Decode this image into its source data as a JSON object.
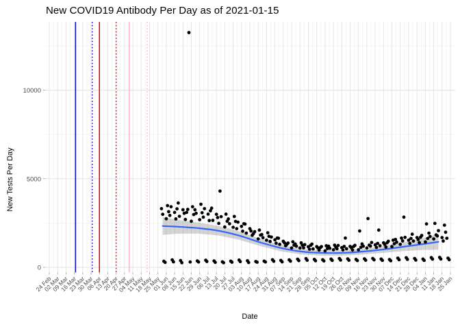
{
  "chart_data": {
    "type": "scatter",
    "title": "New COVID19 Antibody Per Day as of 2021-01-15",
    "xlabel": "Date",
    "ylabel": "New Tests Per Day",
    "x_tick_labels": [
      "24 Feb",
      "02 Mar",
      "09 Mar",
      "16 Mar",
      "23 Mar",
      "30 Mar",
      "06 Apr",
      "13 Apr",
      "20 Apr",
      "27 Apr",
      "04 May",
      "11 May",
      "18 May",
      "25 May",
      "01 Jun",
      "08 Jun",
      "15 Jun",
      "22 Jun",
      "29 Jun",
      "06 Jul",
      "13 Jul",
      "20 Jul",
      "27 Jul",
      "03 Aug",
      "10 Aug",
      "17 Aug",
      "24 Aug",
      "31 Aug",
      "07 Sep",
      "14 Sep",
      "21 Sep",
      "28 Sep",
      "05 Oct",
      "12 Oct",
      "19 Oct",
      "26 Oct",
      "02 Nov",
      "09 Nov",
      "16 Nov",
      "23 Nov",
      "30 Nov",
      "07 Dec",
      "14 Dec",
      "21 Dec",
      "28 Dec",
      "04 Jan",
      "11 Jan",
      "18 Jan",
      "25 Jan"
    ],
    "y_tick_labels": [
      "0",
      "5000",
      "10000"
    ],
    "y_ticks": [
      0,
      5000,
      10000
    ],
    "y_minor_ticks": [
      2500,
      7500,
      12500
    ],
    "ylim": [
      0,
      13850
    ],
    "first_tick_date": "2020-02-24",
    "points_start_date": "2020-05-28",
    "points_offset_days": 94,
    "point_color": "#000000",
    "smooth_color": "#3366FF",
    "ribbon_color": "rgba(125,125,125,0.33)",
    "grid_major_color": "#E3E3E3",
    "grid_minor_color": "#F0F0F0",
    "tick_label_color": "#4D4D4D",
    "daily_values": [
      3310,
      2990,
      340,
      280,
      2740,
      3480,
      3140,
      2930,
      3420,
      420,
      310,
      3100,
      2730,
      3300,
      3630,
      2880,
      380,
      260,
      3250,
      3050,
      2700,
      3100,
      3270,
      13250,
      300,
      2600,
      3420,
      2980,
      3250,
      3050,
      360,
      300,
      2690,
      3560,
      3080,
      2830,
      3310,
      400,
      330,
      3000,
      2640,
      3190,
      3340,
      2650,
      360,
      280,
      2990,
      2810,
      2480,
      4300,
      2860,
      310,
      260,
      2280,
      3000,
      2600,
      2730,
      2460,
      350,
      290,
      2260,
      2870,
      2590,
      2180,
      2550,
      410,
      320,
      2310,
      2040,
      2460,
      2440,
      1930,
      370,
      270,
      2180,
      2050,
      1810,
      1900,
      2010,
      330,
      290,
      1600,
      2100,
      1820,
      1850,
      1670,
      350,
      300,
      1530,
      1950,
      1750,
      1460,
      1710,
      430,
      340,
      1550,
      1360,
      1650,
      1640,
      1300,
      390,
      310,
      1470,
      1380,
      1220,
      1300,
      1370,
      420,
      350,
      1090,
      1440,
      1250,
      1320,
      1190,
      460,
      380,
      1090,
      1380,
      1250,
      1100,
      1280,
      490,
      400,
      1160,
      1020,
      1240,
      1310,
      1040,
      450,
      370,
      1170,
      1100,
      970,
      1110,
      1170,
      430,
      360,
      930,
      1220,
      1060,
      1190,
      1070,
      470,
      390,
      990,
      1250,
      1130,
      1050,
      1230,
      500,
      410,
      1110,
      980,
      1180,
      1650,
      1050,
      480,
      400,
      1180,
      1110,
      980,
      1180,
      1240,
      450,
      380,
      990,
      2050,
      1130,
      1320,
      1190,
      480,
      400,
      1090,
      2750,
      1250,
      1200,
      1400,
      500,
      420,
      1270,
      1120,
      1350,
      2100,
      1220,
      470,
      390,
      1380,
      1290,
      1140,
      1390,
      1470,
      440,
      370,
      1170,
      1530,
      1330,
      1570,
      1420,
      520,
      430,
      1300,
      1650,
      1490,
      2830,
      1690,
      540,
      450,
      1530,
      1350,
      1630,
      1870,
      1480,
      500,
      410,
      1680,
      1570,
      1390,
      1700,
      1800,
      470,
      390,
      1430,
      2450,
      1630,
      1930,
      1740,
      550,
      460,
      1600,
      2480,
      1830,
      1770,
      2070,
      560,
      470,
      1680,
      1480,
      2380,
      1980,
      1640,
      520,
      430
    ],
    "smooth_line": [
      [
        1,
        2330
      ],
      [
        14,
        2290
      ],
      [
        31,
        2210
      ],
      [
        48,
        2060
      ],
      [
        65,
        1790
      ],
      [
        83,
        1400
      ],
      [
        100,
        1090
      ],
      [
        117,
        890
      ],
      [
        134,
        815
      ],
      [
        152,
        815
      ],
      [
        169,
        890
      ],
      [
        186,
        1010
      ],
      [
        203,
        1165
      ],
      [
        220,
        1320
      ],
      [
        232,
        1440
      ]
    ],
    "ribbon_halfwidths": [
      500,
      390,
      310,
      265,
      235,
      205,
      185,
      165,
      155,
      155,
      165,
      195,
      245,
      340,
      450
    ],
    "reference_lines": [
      {
        "label": "17 Mar",
        "days_from_first_tick": 22,
        "color": "#0000CD",
        "style": "solid"
      },
      {
        "label": "31 Mar",
        "days_from_first_tick": 36,
        "color": "#0000CD",
        "style": "dotted"
      },
      {
        "label": "06 Apr",
        "days_from_first_tick": 42,
        "color": "#DD0000",
        "style": "solid"
      },
      {
        "label": "20 Apr",
        "days_from_first_tick": 56,
        "color": "#DD0000",
        "style": "dotted"
      },
      {
        "label": "01 May",
        "days_from_first_tick": 67,
        "color": "#FFB5C5",
        "style": "solid"
      },
      {
        "label": "16 May",
        "days_from_first_tick": 82,
        "color": "#FFB5C5",
        "style": "dotted"
      }
    ]
  }
}
